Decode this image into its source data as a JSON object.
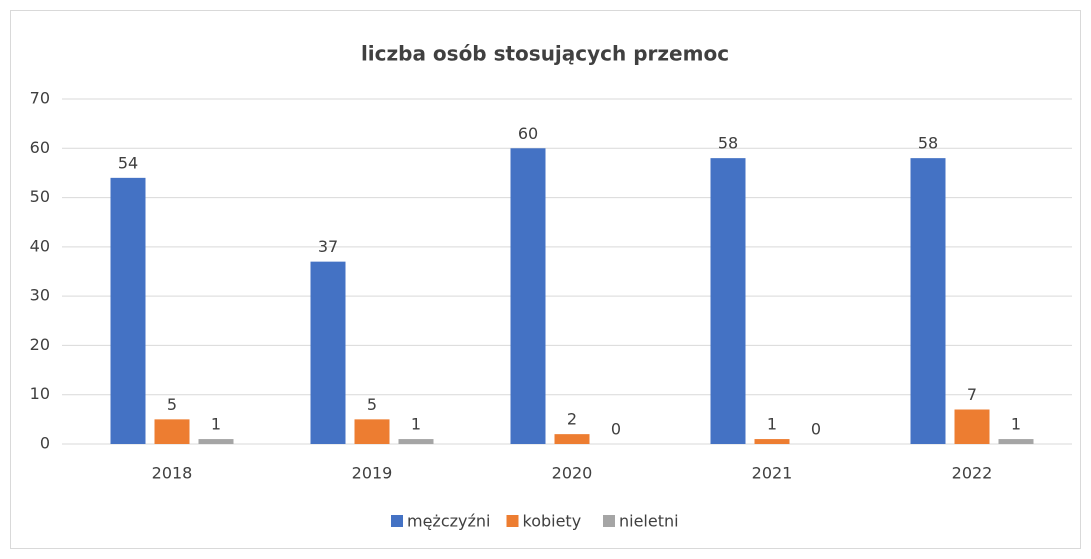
{
  "chart_data": {
    "type": "bar",
    "title": "liczba osób stosujących przemoc",
    "categories": [
      "2018",
      "2019",
      "2020",
      "2021",
      "2022"
    ],
    "series": [
      {
        "name": "mężczyźni",
        "color": "#4472c4",
        "values": [
          54,
          37,
          60,
          58,
          58
        ]
      },
      {
        "name": "kobiety",
        "color": "#ed7d31",
        "values": [
          5,
          5,
          2,
          1,
          7
        ]
      },
      {
        "name": "nieletni",
        "color": "#a5a5a5",
        "values": [
          1,
          1,
          0,
          0,
          1
        ]
      }
    ],
    "ylim": [
      0,
      70
    ],
    "yticks": [
      0,
      10,
      20,
      30,
      40,
      50,
      60,
      70
    ],
    "grid": true,
    "legend": "bottom"
  }
}
